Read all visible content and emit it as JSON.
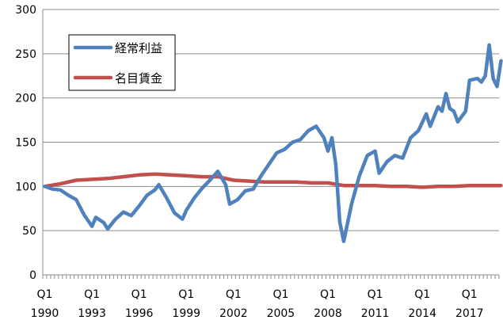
{
  "chart_data": {
    "type": "line",
    "ylim": [
      0,
      300
    ],
    "yticks": [
      0,
      50,
      100,
      150,
      200,
      250,
      300
    ],
    "x_start": {
      "year": 1990,
      "quarter": 1
    },
    "x_end": {
      "year": 2018,
      "quarter": 4
    },
    "x_tick_labels": [
      {
        "quarter": "Q1",
        "year": "1990"
      },
      {
        "quarter": "Q1",
        "year": "1993"
      },
      {
        "quarter": "Q1",
        "year": "1996"
      },
      {
        "quarter": "Q1",
        "year": "1999"
      },
      {
        "quarter": "Q1",
        "year": "2002"
      },
      {
        "quarter": "Q1",
        "year": "2005"
      },
      {
        "quarter": "Q1",
        "year": "2008"
      },
      {
        "quarter": "Q1",
        "year": "2011"
      },
      {
        "quarter": "Q1",
        "year": "2014"
      },
      {
        "quarter": "Q1",
        "year": "2017"
      }
    ],
    "grid": true,
    "legend_position": "top-left",
    "series": [
      {
        "name": "経常利益",
        "color": "#4F81BD",
        "points": [
          [
            "1990Q1",
            100
          ],
          [
            "1990Q3",
            97
          ],
          [
            "1991Q1",
            96
          ],
          [
            "1991Q3",
            90
          ],
          [
            "1992Q1",
            85
          ],
          [
            "1992Q3",
            68
          ],
          [
            "1993Q1",
            55
          ],
          [
            "1993Q2",
            65
          ],
          [
            "1993Q4",
            59
          ],
          [
            "1994Q1",
            52
          ],
          [
            "1994Q3",
            63
          ],
          [
            "1995Q1",
            71
          ],
          [
            "1995Q3",
            67
          ],
          [
            "1996Q1",
            78
          ],
          [
            "1996Q3",
            90
          ],
          [
            "1997Q1",
            96
          ],
          [
            "1997Q2",
            102
          ],
          [
            "1997Q4",
            87
          ],
          [
            "1998Q2",
            70
          ],
          [
            "1998Q4",
            63
          ],
          [
            "1999Q1",
            73
          ],
          [
            "1999Q3",
            87
          ],
          [
            "2000Q1",
            98
          ],
          [
            "2000Q3",
            107
          ],
          [
            "2001Q1",
            117
          ],
          [
            "2001Q3",
            102
          ],
          [
            "2001Q4",
            80
          ],
          [
            "2002Q2",
            85
          ],
          [
            "2002Q4",
            95
          ],
          [
            "2003Q2",
            97
          ],
          [
            "2003Q4",
            112
          ],
          [
            "2004Q2",
            125
          ],
          [
            "2004Q4",
            138
          ],
          [
            "2005Q2",
            142
          ],
          [
            "2005Q4",
            150
          ],
          [
            "2006Q2",
            153
          ],
          [
            "2006Q4",
            163
          ],
          [
            "2007Q2",
            168
          ],
          [
            "2007Q4",
            155
          ],
          [
            "2008Q1",
            140
          ],
          [
            "2008Q2",
            155
          ],
          [
            "2008Q3",
            125
          ],
          [
            "2008Q4",
            60
          ],
          [
            "2009Q1",
            38
          ],
          [
            "2009Q3",
            80
          ],
          [
            "2010Q1",
            112
          ],
          [
            "2010Q3",
            135
          ],
          [
            "2011Q1",
            140
          ],
          [
            "2011Q2",
            115
          ],
          [
            "2011Q4",
            128
          ],
          [
            "2012Q2",
            135
          ],
          [
            "2012Q4",
            132
          ],
          [
            "2013Q2",
            155
          ],
          [
            "2013Q4",
            163
          ],
          [
            "2014Q2",
            182
          ],
          [
            "2014Q3",
            168
          ],
          [
            "2015Q1",
            190
          ],
          [
            "2015Q2",
            185
          ],
          [
            "2015Q3",
            205
          ],
          [
            "2015Q4",
            188
          ],
          [
            "2016Q1",
            185
          ],
          [
            "2016Q2",
            173
          ],
          [
            "2016Q4",
            185
          ],
          [
            "2017Q1",
            220
          ],
          [
            "2017Q3",
            222
          ],
          [
            "2017Q4",
            218
          ],
          [
            "2018Q1",
            225
          ],
          [
            "2018Q2",
            260
          ],
          [
            "2018Q3",
            222
          ],
          [
            "2018Q4",
            213
          ],
          [
            "2019Q1",
            242
          ]
        ]
      },
      {
        "name": "名目賃金",
        "color": "#C0504D",
        "points": [
          [
            "1990Q1",
            100
          ],
          [
            "1991Q1",
            103
          ],
          [
            "1992Q1",
            107
          ],
          [
            "1993Q1",
            108
          ],
          [
            "1994Q1",
            109
          ],
          [
            "1995Q1",
            111
          ],
          [
            "1996Q1",
            113
          ],
          [
            "1997Q1",
            114
          ],
          [
            "1998Q1",
            113
          ],
          [
            "1999Q1",
            112
          ],
          [
            "2000Q1",
            111
          ],
          [
            "2001Q1",
            111
          ],
          [
            "2002Q1",
            107
          ],
          [
            "2003Q1",
            106
          ],
          [
            "2004Q1",
            105
          ],
          [
            "2005Q1",
            105
          ],
          [
            "2006Q1",
            105
          ],
          [
            "2007Q1",
            104
          ],
          [
            "2008Q1",
            104
          ],
          [
            "2009Q1",
            101
          ],
          [
            "2010Q1",
            101
          ],
          [
            "2011Q1",
            101
          ],
          [
            "2012Q1",
            100
          ],
          [
            "2013Q1",
            100
          ],
          [
            "2014Q1",
            99
          ],
          [
            "2015Q1",
            100
          ],
          [
            "2016Q1",
            100
          ],
          [
            "2017Q1",
            101
          ],
          [
            "2018Q1",
            101
          ],
          [
            "2019Q1",
            101
          ]
        ]
      }
    ]
  }
}
